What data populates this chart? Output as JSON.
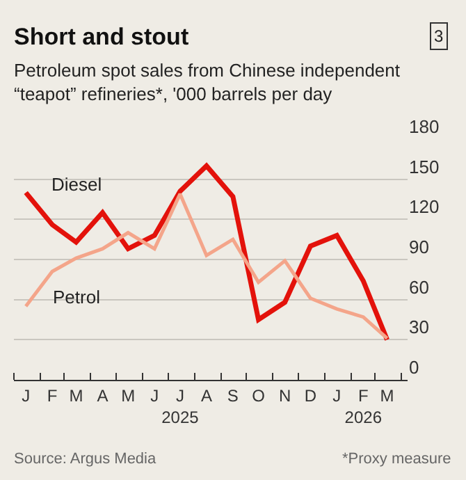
{
  "chart_data": {
    "type": "line",
    "title": "Short and stout",
    "subtitle": "Petroleum spot sales from Chinese independent\n“teapot” refineries*, '000 barrels per day",
    "x": [
      "2025-01-15",
      "2025-02-15",
      "2025-03-15",
      "2025-04-15",
      "2025-05-15",
      "2025-06-15",
      "2025-07-15",
      "2025-08-15",
      "2025-09-15",
      "2025-10-15",
      "2025-11-15",
      "2025-12-15",
      "2026-01-15",
      "2026-02-15",
      "2026-03-15"
    ],
    "series": [
      {
        "name": "Diesel",
        "color": "#e3120b",
        "values": [
          140,
          116,
          103,
          125,
          98,
          108,
          141,
          160,
          137,
          45,
          58,
          100,
          108,
          74,
          30
        ]
      },
      {
        "name": "Petrol",
        "color": "#f4a58a",
        "values": [
          55,
          81,
          91,
          98,
          110,
          98,
          139,
          93,
          105,
          73,
          89,
          61,
          53,
          47,
          31
        ]
      }
    ],
    "ylim": [
      0,
      180
    ],
    "yticks": [
      0,
      30,
      60,
      90,
      120,
      150,
      180
    ],
    "xlim": [
      "2025-01-01",
      "2026-04-08"
    ],
    "xticks": [
      {
        "value": "2025-01-15",
        "label": "J"
      },
      {
        "value": "2025-02-15",
        "label": "F"
      },
      {
        "value": "2025-03-15",
        "label": "M"
      },
      {
        "value": "2025-04-15",
        "label": "A"
      },
      {
        "value": "2025-05-15",
        "label": "M"
      },
      {
        "value": "2025-06-15",
        "label": "J"
      },
      {
        "value": "2025-07-15",
        "label": "J\n2025"
      },
      {
        "value": "2025-08-15",
        "label": "A"
      },
      {
        "value": "2025-09-15",
        "label": "S"
      },
      {
        "value": "2025-10-15",
        "label": "O"
      },
      {
        "value": "2025-11-15",
        "label": "N"
      },
      {
        "value": "2025-12-15",
        "label": "D"
      },
      {
        "value": "2026-01-15",
        "label": "J"
      },
      {
        "value": "2026-02-15",
        "label": "F\n2026"
      },
      {
        "value": "2026-03-15",
        "label": "M"
      },
      {
        "value": "2025-01-01",
        "label": null
      },
      {
        "value": "2025-02-01",
        "label": null
      },
      {
        "value": "2025-03-01",
        "label": null
      },
      {
        "value": "2025-04-01",
        "label": null
      },
      {
        "value": "2025-05-01",
        "label": null
      },
      {
        "value": "2025-06-01",
        "label": null
      },
      {
        "value": "2025-07-01",
        "label": null
      },
      {
        "value": "2025-08-01",
        "label": null
      },
      {
        "value": "2025-09-01",
        "label": null
      },
      {
        "value": "2025-10-01",
        "label": null
      },
      {
        "value": "2025-11-01",
        "label": null
      },
      {
        "value": "2025-12-01",
        "label": null
      },
      {
        "value": "2026-01-01",
        "label": null
      },
      {
        "value": "2026-02-01",
        "label": null
      },
      {
        "value": "2026-03-01",
        "label": null
      },
      {
        "value": "2026-04-01",
        "label": null
      }
    ],
    "grid": "y",
    "legend": false,
    "marker": "none",
    "line_style": "solid",
    "annotations": [
      "3",
      "Source: Argus Media",
      "*Proxy measure"
    ]
  }
}
